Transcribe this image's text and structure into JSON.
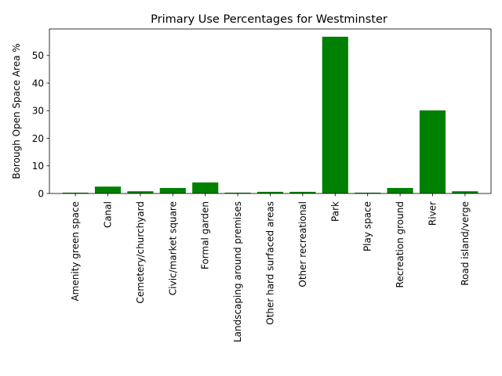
{
  "chart_data": {
    "type": "bar",
    "title": "Primary Use Percentages for Westminster",
    "xlabel": "",
    "ylabel": "Borough Open Space Area %",
    "categories": [
      "Amenity green space",
      "Canal",
      "Cemetery/churchyard",
      "Civic/market square",
      "Formal garden",
      "Landscaping around premises",
      "Other hard surfaced areas",
      "Other recreational",
      "Park",
      "Play space",
      "Recreation ground",
      "River",
      "Road island/verge"
    ],
    "values": [
      0.3,
      2.5,
      0.8,
      2.0,
      4.0,
      0.3,
      0.6,
      0.6,
      56.8,
      0.3,
      2.0,
      30.1,
      0.8
    ],
    "ylim": [
      0,
      59.6
    ],
    "yticks": [
      0,
      10,
      20,
      30,
      40,
      50
    ],
    "bar_color": "#008000",
    "grid": false,
    "legend": "none"
  }
}
